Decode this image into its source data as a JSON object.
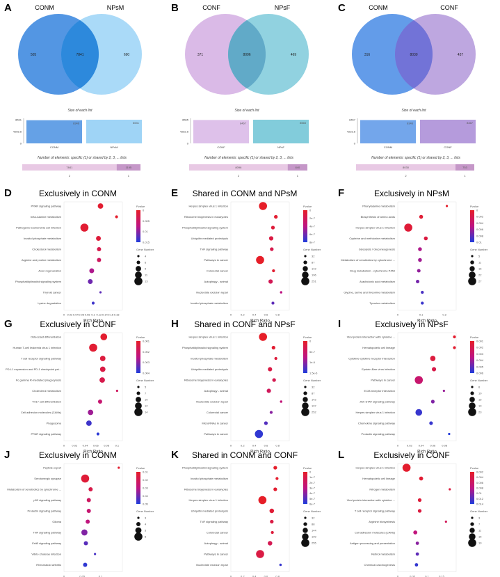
{
  "panels_venn": [
    {
      "letter": "A",
      "left": "CONM",
      "right": "NPsM",
      "only_left": "505",
      "shared": "7841",
      "only_right": "690",
      "colors": [
        "#4a90e2",
        "#8ecdf5",
        "#1f7fd8"
      ],
      "size_title": "Size of each list",
      "size_yticks": [
        "8531",
        "4265.5",
        "0"
      ],
      "sizes": [
        {
          "name": "CONM",
          "value": 8346
        },
        {
          "name": "NPsM",
          "value": 8531
        }
      ],
      "elems_title": "Number of elements: specific (1) or shared by 2, 3, ... lists",
      "elems": [
        {
          "k": "2",
          "v": "7841"
        },
        {
          "k": "1",
          "v": "1195"
        }
      ]
    },
    {
      "letter": "B",
      "left": "CONF",
      "right": "NPsF",
      "only_left": "371",
      "shared": "8096",
      "only_right": "469",
      "colors": [
        "#d8b6e6",
        "#6cc3d5",
        "#5aa6c4"
      ],
      "size_title": "Size of each list",
      "size_yticks": [
        "8565",
        "4282.5",
        "0"
      ],
      "sizes": [
        {
          "name": "CONF",
          "value": 8467
        },
        {
          "name": "NPsF",
          "value": 8565
        }
      ],
      "elems_title": "Number of elements: specific (1) or shared by 2, 3, ... lists",
      "elems": [
        {
          "k": "2",
          "v": "8096"
        },
        {
          "k": "1",
          "v": "840"
        }
      ]
    },
    {
      "letter": "C",
      "left": "CONM",
      "right": "CONF",
      "only_left": "316",
      "shared": "8030",
      "only_right": "437",
      "colors": [
        "#5b97e8",
        "#a88ad6",
        "#6b6fd6"
      ],
      "size_title": "Size of each list",
      "size_yticks": [
        "8467",
        "4233.5",
        "0"
      ],
      "sizes": [
        {
          "name": "CONM",
          "value": 8346
        },
        {
          "name": "CONF",
          "value": 8467
        }
      ],
      "elems_title": "Number of elements: specific (1) or shared by 2, 3, ... lists",
      "elems": [
        {
          "k": "2",
          "v": "8030"
        },
        {
          "k": "1",
          "v": "753"
        }
      ]
    }
  ],
  "chart_data": [
    {
      "letter": "D",
      "type": "scatter",
      "title": "Exclusively in CONM",
      "xlabel": "Rich Ratio",
      "xticks": [
        "0",
        "0.02",
        "0.04",
        "0.06",
        "0.08",
        "0.1",
        "0.12",
        "0.14",
        "0.16",
        "0.18"
      ],
      "xlim": [
        0,
        0.2
      ],
      "pvalue_ticks": [
        "0",
        "0.005",
        "0.01",
        "0.015"
      ],
      "pvalue_range": [
        0,
        0.02
      ],
      "size_ticks": [
        "4",
        "6",
        "9",
        "11",
        "13"
      ],
      "size_range": [
        4,
        13
      ],
      "terms": [
        {
          "name": "PPAR signaling pathway",
          "x": 0.125,
          "p": 0.001,
          "n": 9
        },
        {
          "name": "beta-Alanine metabolism",
          "x": 0.18,
          "p": 0.0005,
          "n": 5
        },
        {
          "name": "Pathogenic Escherichia coli infection",
          "x": 0.07,
          "p": 0.0012,
          "n": 13
        },
        {
          "name": "Inositol phosphate metabolism",
          "x": 0.118,
          "p": 0.002,
          "n": 8
        },
        {
          "name": "Cholesterol metabolism",
          "x": 0.12,
          "p": 0.004,
          "n": 7
        },
        {
          "name": "Arginine and proline metabolism",
          "x": 0.12,
          "p": 0.006,
          "n": 7
        },
        {
          "name": "Axon regeneration",
          "x": 0.095,
          "p": 0.011,
          "n": 8
        },
        {
          "name": "Phosphatidylinositol signaling system",
          "x": 0.09,
          "p": 0.015,
          "n": 8
        },
        {
          "name": "Thyroid cancer",
          "x": 0.125,
          "p": 0.016,
          "n": 4
        },
        {
          "name": "Lysine degradation",
          "x": 0.1,
          "p": 0.018,
          "n": 5
        }
      ]
    },
    {
      "letter": "E",
      "type": "scatter",
      "title": "Shared in CONM and NPsM",
      "xlabel": "Rich Ratio",
      "xticks": [
        "0",
        "0.2",
        "0.4",
        "0.6",
        "0.8"
      ],
      "xlim": [
        0,
        1
      ],
      "pvalue_ticks": [
        "0",
        "2e-7",
        "4e-7",
        "6e-7",
        "8e-7"
      ],
      "pvalue_range": [
        0,
        1e-06
      ],
      "size_ticks": [
        "32",
        "87",
        "142",
        "196",
        "251"
      ],
      "size_range": [
        32,
        251
      ],
      "terms": [
        {
          "name": "Herpes simplex virus 1 infection",
          "x": 0.55,
          "p": 0,
          "n": 251
        },
        {
          "name": "Ribosome biogenesis in eukaryotes",
          "x": 0.77,
          "p": 5e-08,
          "n": 87
        },
        {
          "name": "Phosphatidylinositol signaling system",
          "x": 0.72,
          "p": 1e-07,
          "n": 87
        },
        {
          "name": "Ubiquitin mediated proteolysis",
          "x": 0.69,
          "p": 1.5e-07,
          "n": 110
        },
        {
          "name": "TNF signaling pathway",
          "x": 0.7,
          "p": 2e-07,
          "n": 87
        },
        {
          "name": "Pathways in cancer",
          "x": 0.5,
          "p": 0,
          "n": 251
        },
        {
          "name": "Colorectal cancer",
          "x": 0.73,
          "p": 5e-08,
          "n": 60
        },
        {
          "name": "Autophagy - animal",
          "x": 0.68,
          "p": 2.5e-07,
          "n": 110
        },
        {
          "name": "Nucleotide excision repair",
          "x": 0.86,
          "p": 5e-07,
          "n": 40
        },
        {
          "name": "Inositol phosphate metabolism",
          "x": 0.72,
          "p": 8e-07,
          "n": 60
        }
      ]
    },
    {
      "letter": "F",
      "type": "scatter",
      "title": "Exclusively in NPsM",
      "xlabel": "Rich Ratio",
      "xticks": [
        "0",
        "0.1",
        "0.2"
      ],
      "xlim": [
        0,
        0.25
      ],
      "pvalue_ticks": [
        "0",
        "0.002",
        "0.004",
        "0.006",
        "0.008",
        "0.01"
      ],
      "pvalue_range": [
        0,
        0.011
      ],
      "size_ticks": [
        "5",
        "11",
        "16",
        "22",
        "27"
      ],
      "size_range": [
        5,
        27
      ],
      "terms": [
        {
          "name": "Phenylalanine metabolism",
          "x": 0.21,
          "p": 0.0002,
          "n": 5
        },
        {
          "name": "Biosynthesis of amino acids",
          "x": 0.1,
          "p": 0.0008,
          "n": 11
        },
        {
          "name": "Herpes simplex virus 1 infection",
          "x": 0.045,
          "p": 0.001,
          "n": 27
        },
        {
          "name": "Cysteine and methionine metabolism",
          "x": 0.12,
          "p": 0.0015,
          "n": 11
        },
        {
          "name": "Glycolysis / Gluconeogenesis",
          "x": 0.095,
          "p": 0.006,
          "n": 11
        },
        {
          "name": "Metabolism of xenobiotics by cytochrome ...",
          "x": 0.095,
          "p": 0.0065,
          "n": 11
        },
        {
          "name": "Drug metabolism - cytochrome P450",
          "x": 0.09,
          "p": 0.007,
          "n": 10
        },
        {
          "name": "Arachidonic acid metabolism",
          "x": 0.085,
          "p": 0.008,
          "n": 10
        },
        {
          "name": "Glycine, serine and threonine metabolism",
          "x": 0.105,
          "p": 0.0095,
          "n": 8
        },
        {
          "name": "Tyrosine metabolism",
          "x": 0.105,
          "p": 0.01,
          "n": 8
        }
      ]
    },
    {
      "letter": "G",
      "type": "scatter",
      "title": "Exclusively in CONF",
      "xlabel": "Rich Ratio",
      "xticks": [
        "0",
        "0.02",
        "0.04",
        "0.06",
        "0.08",
        "0.1"
      ],
      "xlim": [
        0,
        0.11
      ],
      "pvalue_ticks": [
        "0.001",
        "0.002",
        "0.003",
        "0.004"
      ],
      "pvalue_range": [
        0,
        0.005
      ],
      "size_ticks": [
        "5",
        "7",
        "10",
        "12",
        "14"
      ],
      "size_range": [
        5,
        14
      ],
      "terms": [
        {
          "name": "Osteoclast differentiation",
          "x": 0.075,
          "p": 0.0002,
          "n": 12
        },
        {
          "name": "Human T-cell leukemia virus 1 infection",
          "x": 0.055,
          "p": 0.0003,
          "n": 14
        },
        {
          "name": "T cell receptor signaling pathway",
          "x": 0.073,
          "p": 0.0006,
          "n": 10
        },
        {
          "name": "PD-L1 expression and PD-1 checkpoint pat...",
          "x": 0.073,
          "p": 0.0008,
          "n": 10
        },
        {
          "name": "Fc gamma R-mediated phagocytosis",
          "x": 0.072,
          "p": 0.001,
          "n": 10
        },
        {
          "name": "Cholesterol metabolism",
          "x": 0.1,
          "p": 0.0015,
          "n": 5
        },
        {
          "name": "TH17 cell differentiation",
          "x": 0.068,
          "p": 0.002,
          "n": 8
        },
        {
          "name": "Cell adhesion molecules (CAMs)",
          "x": 0.05,
          "p": 0.003,
          "n": 10
        },
        {
          "name": "Phagosome",
          "x": 0.047,
          "p": 0.0045,
          "n": 10
        },
        {
          "name": "PPAR signaling pathway",
          "x": 0.064,
          "p": 0.0048,
          "n": 6
        }
      ]
    },
    {
      "letter": "H",
      "type": "scatter",
      "title": "Shared in CONF and NPsF",
      "xlabel": "Rich Ratio",
      "xticks": [
        "0",
        "0.2",
        "0.4",
        "0.6",
        "0.8"
      ],
      "xlim": [
        0,
        1
      ],
      "pvalue_ticks": [
        "0",
        "5e-7",
        "1e-6",
        "1.5e-6"
      ],
      "pvalue_range": [
        0,
        1.8e-06
      ],
      "size_ticks": [
        "32",
        "87",
        "142",
        "197",
        "252"
      ],
      "size_range": [
        32,
        252
      ],
      "terms": [
        {
          "name": "Herpes simplex virus 1 infection",
          "x": 0.55,
          "p": 0,
          "n": 252
        },
        {
          "name": "Phosphatidylinositol signaling system",
          "x": 0.73,
          "p": 1e-07,
          "n": 87
        },
        {
          "name": "Inositol phosphate metabolism",
          "x": 0.77,
          "p": 2e-07,
          "n": 60
        },
        {
          "name": "Ubiquitin mediated proteolysis",
          "x": 0.67,
          "p": 3e-07,
          "n": 110
        },
        {
          "name": "Ribosome biogenesis in eukaryotes",
          "x": 0.74,
          "p": 4e-07,
          "n": 87
        },
        {
          "name": "Autophagy - animal",
          "x": 0.65,
          "p": 5e-07,
          "n": 110
        },
        {
          "name": "Nucleotide excision repair",
          "x": 0.86,
          "p": 8e-07,
          "n": 40
        },
        {
          "name": "Colorectal cancer",
          "x": 0.69,
          "p": 1.2e-06,
          "n": 60
        },
        {
          "name": "MicroRNAs in cancer",
          "x": 0.6,
          "p": 1.5e-06,
          "n": 87
        },
        {
          "name": "Pathways in cancer",
          "x": 0.48,
          "p": 1.7e-06,
          "n": 252
        }
      ]
    },
    {
      "letter": "I",
      "type": "scatter",
      "title": "Exclusively in NPsF",
      "xlabel": "Rich Ratio",
      "xticks": [
        "0",
        "0.02",
        "0.04",
        "0.06",
        "0.08"
      ],
      "xlim": [
        0,
        0.1
      ],
      "pvalue_ticks": [
        "0.001",
        "0.002",
        "0.003",
        "0.004",
        "0.005",
        "0.006"
      ],
      "pvalue_range": [
        0,
        0.0065
      ],
      "size_ticks": [
        "6",
        "10",
        "15",
        "19",
        "23"
      ],
      "size_range": [
        6,
        23
      ],
      "terms": [
        {
          "name": "Viral protein interaction with cytokine ...",
          "x": 0.097,
          "p": 0.0002,
          "n": 8
        },
        {
          "name": "Hematopoietic cell lineage",
          "x": 0.097,
          "p": 0.0003,
          "n": 8
        },
        {
          "name": "Cytokine-cytokine receptor interaction",
          "x": 0.06,
          "p": 0.0008,
          "n": 15
        },
        {
          "name": "Epstein-Barr virus infection",
          "x": 0.062,
          "p": 0.0012,
          "n": 12
        },
        {
          "name": "Pathways in cancer",
          "x": 0.036,
          "p": 0.0025,
          "n": 23
        },
        {
          "name": "ECM-receptor interaction",
          "x": 0.079,
          "p": 0.004,
          "n": 6
        },
        {
          "name": "JAK-STAT signaling pathway",
          "x": 0.06,
          "p": 0.0045,
          "n": 10
        },
        {
          "name": "Herpes simplex virus 1 infection",
          "x": 0.036,
          "p": 0.006,
          "n": 19
        },
        {
          "name": "Chemokine signaling pathway",
          "x": 0.057,
          "p": 0.006,
          "n": 10
        },
        {
          "name": "Prolactin signaling pathway",
          "x": 0.088,
          "p": 0.0064,
          "n": 6
        }
      ]
    },
    {
      "letter": "J",
      "type": "scatter",
      "title": "Exclusively in CONM",
      "xlabel": "Rich Ratio",
      "xticks": [
        "0",
        "0.05",
        "0.1"
      ],
      "xlim": [
        0,
        0.16
      ],
      "pvalue_ticks": [
        "0.01",
        "0.02",
        "0.03",
        "0.04",
        "0.05"
      ],
      "pvalue_range": [
        0,
        0.055
      ],
      "size_ticks": [
        "3",
        "4",
        "5",
        "6"
      ],
      "size_range": [
        3,
        6
      ],
      "terms": [
        {
          "name": "Peptide export",
          "x": 0.15,
          "p": 0.002,
          "n": 3
        },
        {
          "name": "Serotonergic synapse",
          "x": 0.058,
          "p": 0.005,
          "n": 6
        },
        {
          "name": "Metabolism of xenobiotics by cytochrome ...",
          "x": 0.073,
          "p": 0.01,
          "n": 4
        },
        {
          "name": "p53 signaling pathway",
          "x": 0.068,
          "p": 0.017,
          "n": 4
        },
        {
          "name": "Prolactin signaling pathway",
          "x": 0.068,
          "p": 0.022,
          "n": 4
        },
        {
          "name": "Glioma",
          "x": 0.065,
          "p": 0.026,
          "n": 4
        },
        {
          "name": "TNF signaling pathway",
          "x": 0.056,
          "p": 0.038,
          "n": 5
        },
        {
          "name": "ErbB signaling pathway",
          "x": 0.06,
          "p": 0.045,
          "n": 4
        },
        {
          "name": "Vibrio cholerae infection",
          "x": 0.085,
          "p": 0.048,
          "n": 3
        },
        {
          "name": "Rheumatoid arthritis",
          "x": 0.058,
          "p": 0.052,
          "n": 4
        }
      ]
    },
    {
      "letter": "K",
      "type": "scatter",
      "title": "Shared in CONM and CONF",
      "xlabel": "Rich Ratio",
      "xticks": [
        "0",
        "0.2",
        "0.4",
        "0.6",
        "0.8"
      ],
      "xlim": [
        0,
        1
      ],
      "pvalue_ticks": [
        "0",
        "1e-7",
        "2e-7",
        "3e-7",
        "4e-7",
        "5e-7",
        "6e-7"
      ],
      "pvalue_range": [
        0,
        6.5e-07
      ],
      "size_ticks": [
        "32",
        "88",
        "144",
        "199",
        "255"
      ],
      "size_range": [
        32,
        255
      ],
      "terms": [
        {
          "name": "Phosphatidylinositol signaling system",
          "x": 0.76,
          "p": 1e-08,
          "n": 88
        },
        {
          "name": "Inositol phosphate metabolism",
          "x": 0.79,
          "p": 2e-08,
          "n": 60
        },
        {
          "name": "Ribosome biogenesis in eukaryotes",
          "x": 0.76,
          "p": 3e-08,
          "n": 88
        },
        {
          "name": "Herpes simplex virus 1 infection",
          "x": 0.54,
          "p": 0,
          "n": 255
        },
        {
          "name": "Ubiquitin mediated proteolysis",
          "x": 0.7,
          "p": 5e-08,
          "n": 120
        },
        {
          "name": "TNF signaling pathway",
          "x": 0.7,
          "p": 1e-07,
          "n": 88
        },
        {
          "name": "Colorectal cancer",
          "x": 0.71,
          "p": 7e-08,
          "n": 60
        },
        {
          "name": "Autophagy - animal",
          "x": 0.67,
          "p": 1.5e-07,
          "n": 120
        },
        {
          "name": "Pathways in cancer",
          "x": 0.5,
          "p": 1e-07,
          "n": 255
        },
        {
          "name": "Nucleotide excision repair",
          "x": 0.85,
          "p": 6e-07,
          "n": 40
        }
      ]
    },
    {
      "letter": "L",
      "type": "scatter",
      "title": "Exclusively in CONF",
      "xlabel": "Rich Ratio",
      "xticks": [
        "0",
        "0.05",
        "0.1",
        "0.15"
      ],
      "xlim": [
        0,
        0.2
      ],
      "pvalue_ticks": [
        "0.002",
        "0.004",
        "0.006",
        "0.008",
        "0.01",
        "0.012",
        "0.014"
      ],
      "pvalue_range": [
        0,
        0.015
      ],
      "size_ticks": [
        "3",
        "7",
        "11",
        "15",
        "19"
      ],
      "size_range": [
        3,
        19
      ],
      "terms": [
        {
          "name": "Herpes simplex virus 1 infection",
          "x": 0.03,
          "p": 0.0005,
          "n": 19
        },
        {
          "name": "Hematopoietic cell lineage",
          "x": 0.08,
          "p": 0.001,
          "n": 8
        },
        {
          "name": "Nitrogen metabolism",
          "x": 0.178,
          "p": 0.002,
          "n": 3
        },
        {
          "name": "Viral protein interaction with cytokine ...",
          "x": 0.075,
          "p": 0.0015,
          "n": 7
        },
        {
          "name": "T cell receptor signaling pathway",
          "x": 0.075,
          "p": 0.002,
          "n": 7
        },
        {
          "name": "Arginine biosynthesis",
          "x": 0.165,
          "p": 0.004,
          "n": 3
        },
        {
          "name": "Cell adhesion molecules (CAMs)",
          "x": 0.06,
          "p": 0.007,
          "n": 8
        },
        {
          "name": "Antigen processing and presentation",
          "x": 0.067,
          "p": 0.01,
          "n": 6
        },
        {
          "name": "Retinol metabolism",
          "x": 0.067,
          "p": 0.012,
          "n": 6
        },
        {
          "name": "Chemical carcinogenesis",
          "x": 0.064,
          "p": 0.014,
          "n": 6
        }
      ]
    }
  ],
  "legend_labels": {
    "pvalue": "Pvalue",
    "gene": "Gene Number"
  }
}
